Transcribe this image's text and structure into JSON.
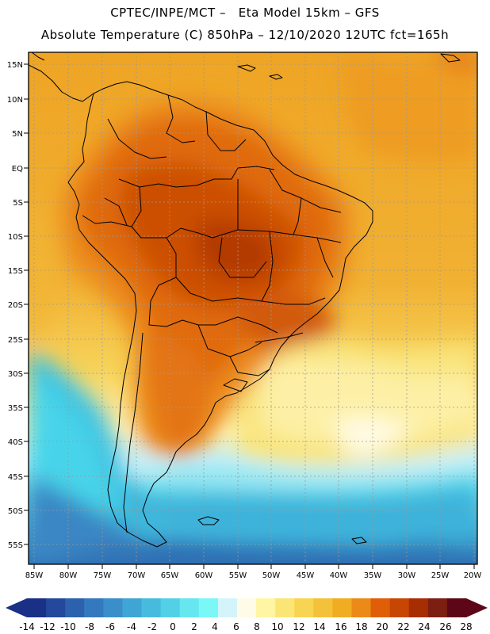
{
  "header": {
    "line1": "CPTEC/INPE/MCT –   Eta Model 15km – GFS",
    "line2": "Absolute Temperature (C) 850hPa – 12/10/2020 12UTC fct=165h"
  },
  "axes": {
    "lat_labels": [
      "15N",
      "10N",
      "5N",
      "EQ",
      "5S",
      "10S",
      "15S",
      "20S",
      "25S",
      "30S",
      "35S",
      "40S",
      "45S",
      "50S",
      "55S"
    ],
    "lon_labels": [
      "85W",
      "80W",
      "75W",
      "70W",
      "65W",
      "60W",
      "55W",
      "50W",
      "45W",
      "40W",
      "35W",
      "30W",
      "25W",
      "20W"
    ]
  },
  "colorbar": {
    "labels": [
      "-14",
      "-12",
      "-10",
      "-8",
      "-6",
      "-4",
      "-2",
      "0",
      "2",
      "4",
      "6",
      "8",
      "10",
      "12",
      "14",
      "16",
      "18",
      "20",
      "22",
      "24",
      "26",
      "28"
    ],
    "colors": [
      "#1a2f86",
      "#23489c",
      "#2c62ad",
      "#3479bd",
      "#3a8fca",
      "#3fa5d4",
      "#46bbde",
      "#52d0e6",
      "#66e6ee",
      "#7af7f7",
      "#d2f4fa",
      "#fffbe6",
      "#fff5a2",
      "#fbe675",
      "#f7d452",
      "#f3c23a",
      "#f0ad21",
      "#ec8a19",
      "#e05e08",
      "#c84604",
      "#a72e03",
      "#7c1e12",
      "#5d0617"
    ],
    "left_arrow_color": "#1a2f86",
    "right_arrow_color": "#5d0617"
  }
}
